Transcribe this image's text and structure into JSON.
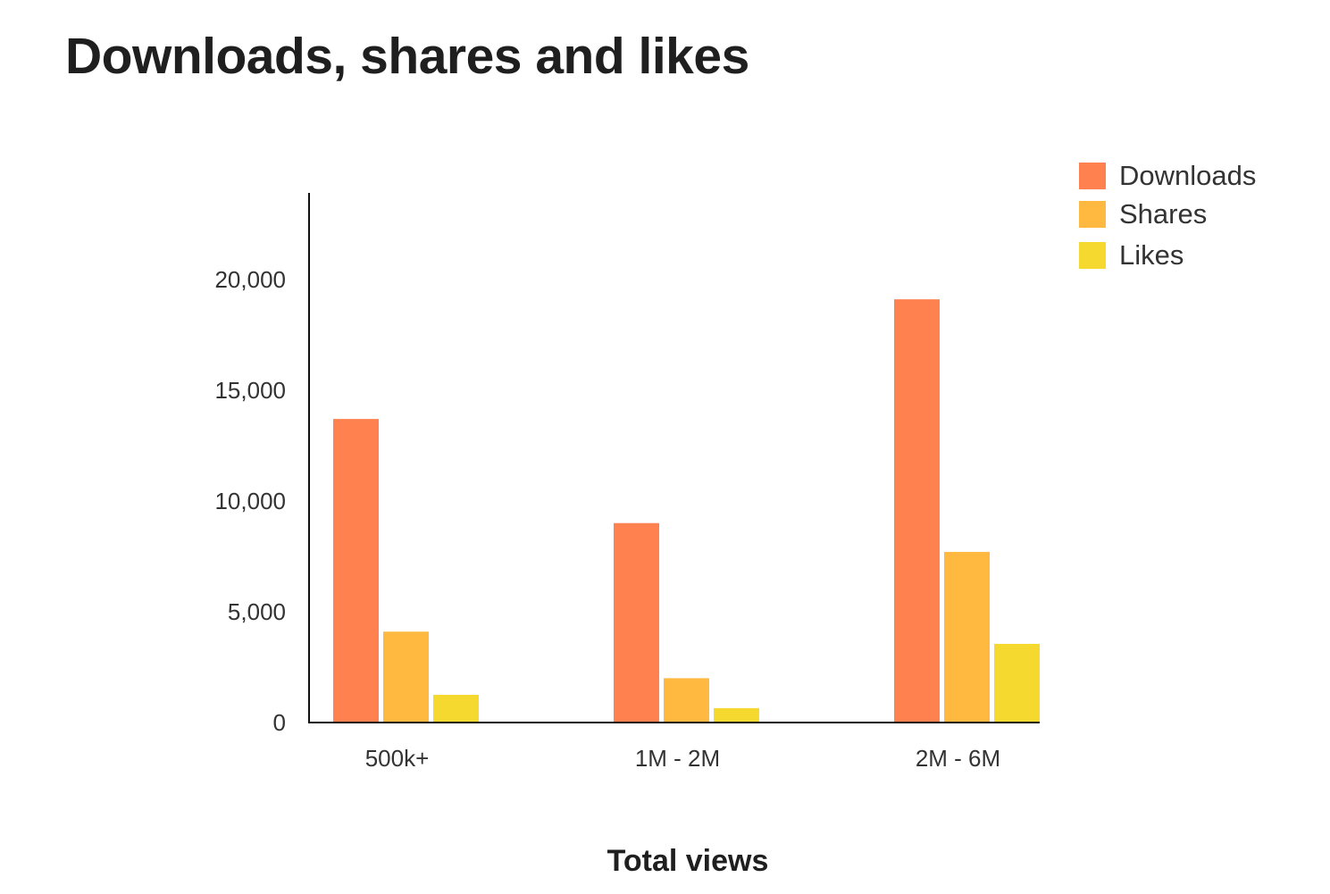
{
  "chart_data": {
    "type": "bar",
    "title": "Downloads, shares and likes",
    "xlabel": "Total views",
    "ylabel": "",
    "categories": [
      "500k+",
      "1M - 2M",
      "2M - 6M"
    ],
    "series": [
      {
        "name": "Downloads",
        "color": "#FF8150",
        "values": [
          13700,
          9000,
          19100
        ]
      },
      {
        "name": "Shares",
        "color": "#FFB941",
        "values": [
          4100,
          2000,
          7700
        ]
      },
      {
        "name": "Likes",
        "color": "#F6D92E",
        "values": [
          1250,
          650,
          3550
        ]
      }
    ],
    "yticks": [
      0,
      5000,
      10000,
      15000,
      20000
    ],
    "ytick_labels": [
      "0",
      "5,000",
      "10,000",
      "15,000",
      "20,000"
    ],
    "ylim": [
      0,
      24000
    ],
    "grid": false,
    "legend": "top-right"
  }
}
